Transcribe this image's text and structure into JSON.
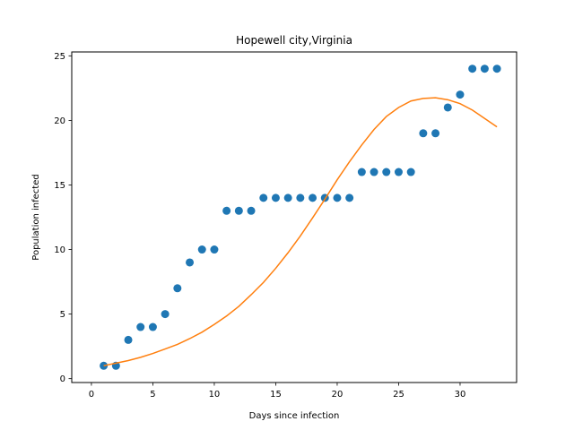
{
  "chart_data": {
    "type": "scatter",
    "title": "Hopewell city,Virginia",
    "xlabel": "Days since infection",
    "ylabel": "Population infected",
    "xlim": [
      -1.6,
      34.6
    ],
    "ylim": [
      -0.3,
      25.3
    ],
    "xticks": [
      0,
      5,
      10,
      15,
      20,
      25,
      30
    ],
    "yticks": [
      0,
      5,
      10,
      15,
      20,
      25
    ],
    "grid": false,
    "series": [
      {
        "type": "scatter",
        "color": "#1f77b4",
        "x": [
          1,
          2,
          3,
          4,
          5,
          6,
          7,
          8,
          9,
          10,
          11,
          12,
          13,
          14,
          15,
          16,
          17,
          18,
          19,
          20,
          21,
          22,
          23,
          24,
          25,
          26,
          27,
          28,
          29,
          30,
          31,
          32,
          33
        ],
        "y": [
          1,
          1,
          3,
          4,
          4,
          5,
          7,
          9,
          10,
          10,
          13,
          13,
          13,
          14,
          14,
          14,
          14,
          14,
          14,
          14,
          14,
          16,
          16,
          16,
          16,
          16,
          19,
          19,
          21,
          22,
          24,
          24,
          24
        ]
      },
      {
        "type": "line",
        "color": "#ff7f0e",
        "x": [
          1,
          2,
          3,
          4,
          5,
          6,
          7,
          8,
          9,
          10,
          11,
          12,
          13,
          14,
          15,
          16,
          17,
          18,
          19,
          20,
          21,
          22,
          23,
          24,
          25,
          26,
          27,
          28,
          29,
          30,
          31,
          32,
          33
        ],
        "y": [
          1.0,
          1.2,
          1.4,
          1.65,
          1.95,
          2.3,
          2.65,
          3.1,
          3.6,
          4.2,
          4.85,
          5.6,
          6.5,
          7.45,
          8.55,
          9.75,
          11.05,
          12.45,
          13.9,
          15.4,
          16.8,
          18.1,
          19.3,
          20.3,
          21.0,
          21.5,
          21.7,
          21.75,
          21.6,
          21.3,
          20.8,
          20.15,
          19.5
        ]
      }
    ]
  }
}
